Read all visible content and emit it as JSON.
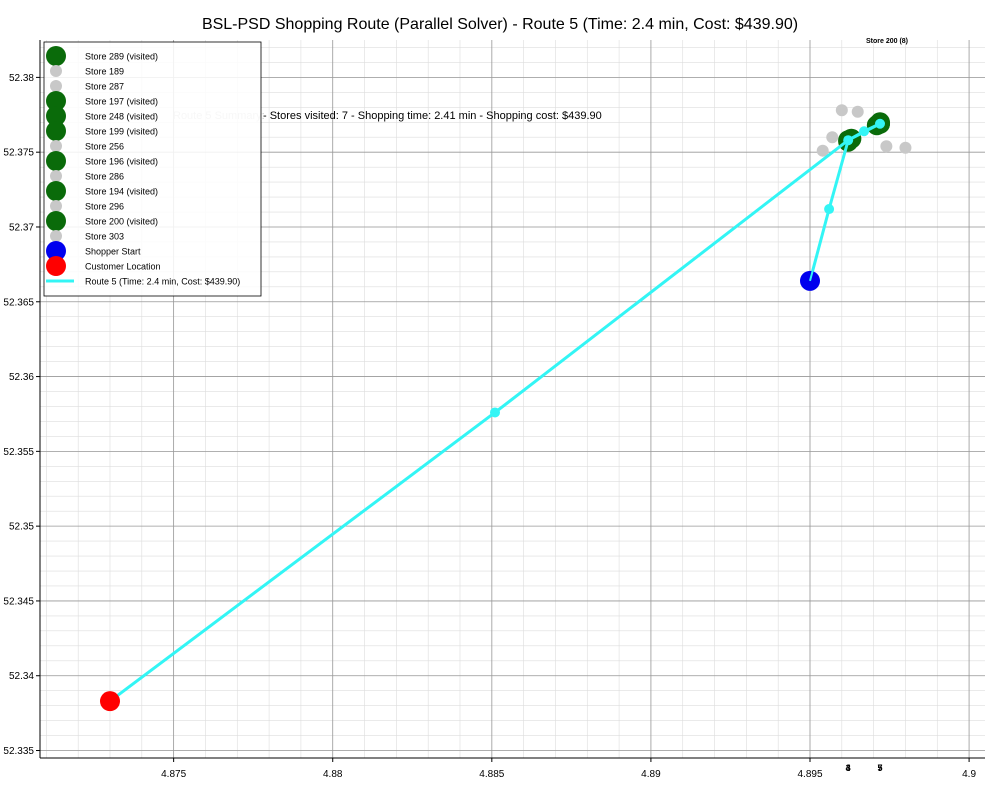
{
  "colors": {
    "visited": "#0a6b0a",
    "unvisited": "#c8c8c8",
    "shopper": "#0000ee",
    "customer": "#ff0000",
    "route": "#33f5f5",
    "grid_major": "#999999",
    "grid_minor": "#dddddd"
  },
  "chart_data": {
    "type": "scatter",
    "title": "BSL-PSD Shopping Route (Parallel Solver) - Route 5 (Time: 2.4 min, Cost: $439.90)",
    "xlabel": "",
    "ylabel": "",
    "xlim": [
      4.8708,
      4.9005
    ],
    "ylim": [
      52.3345,
      52.3825
    ],
    "x_ticks": [
      4.875,
      4.88,
      4.885,
      4.89,
      4.895,
      4.9
    ],
    "x_tick_labels": [
      "4.875",
      "4.88",
      "4.885",
      "4.89",
      "4.895",
      "4.9"
    ],
    "y_ticks": [
      52.335,
      52.34,
      52.345,
      52.35,
      52.355,
      52.36,
      52.365,
      52.37,
      52.375,
      52.38
    ],
    "y_tick_labels": [
      "52.335",
      "52.34",
      "52.345",
      "52.35",
      "52.355",
      "52.36",
      "52.365",
      "52.37",
      "52.375",
      "52.38"
    ],
    "grid": true,
    "minor_grid": true,
    "legend_position": "top-left",
    "annotation": "- Stores visited: 7 - Shopping time: 2.41 min - Shopping cost: $439.90",
    "annotation_hidden_prefix": "Route 5 Summary:",
    "top_label": "Store 200 (8)",
    "store_points": [
      {
        "name": "Store 289 (visited)",
        "visited": true,
        "x": 4.8962,
        "y": 52.3758
      },
      {
        "name": "Store 189",
        "visited": false,
        "x": 4.896,
        "y": 52.3778
      },
      {
        "name": "Store 287",
        "visited": false,
        "x": 4.8957,
        "y": 52.376
      },
      {
        "name": "Store 197 (visited)",
        "visited": true,
        "x": 4.8972,
        "y": 52.3769
      },
      {
        "name": "Store 248 (visited)",
        "visited": true,
        "x": 4.8963,
        "y": 52.3759
      },
      {
        "name": "Store 199 (visited)",
        "visited": true,
        "x": 4.8971,
        "y": 52.3768
      },
      {
        "name": "Store 256",
        "visited": false,
        "x": 4.8954,
        "y": 52.3751
      },
      {
        "name": "Store 196 (visited)",
        "visited": true,
        "x": 4.8962,
        "y": 52.3757
      },
      {
        "name": "Store 286",
        "visited": false,
        "x": 4.8965,
        "y": 52.3777
      },
      {
        "name": "Store 194 (visited)",
        "visited": true,
        "x": 4.8972,
        "y": 52.377
      },
      {
        "name": "Store 296",
        "visited": false,
        "x": 4.8974,
        "y": 52.3754
      },
      {
        "name": "Store 200 (visited)",
        "visited": true,
        "x": 4.8972,
        "y": 52.3769
      },
      {
        "name": "Store 303",
        "visited": false,
        "x": 4.898,
        "y": 52.3753
      }
    ],
    "shopper_start": {
      "name": "Shopper Start",
      "x": 4.895,
      "y": 52.3664
    },
    "customer_location": {
      "name": "Customer Location",
      "x": 4.873,
      "y": 52.3383
    },
    "route": {
      "name": "Route 5 (Time: 2.4 min, Cost: $439.90)",
      "x": [
        4.895,
        4.8956,
        4.8962,
        4.8962,
        4.8967,
        4.8972,
        4.8972,
        4.8962,
        4.8851,
        4.873
      ],
      "y": [
        52.3664,
        52.3712,
        52.3758,
        52.3758,
        52.3764,
        52.3769,
        52.3769,
        52.3758,
        52.3576,
        52.3383
      ]
    },
    "route_midpoints": [
      {
        "x": 4.8956,
        "y": 52.3712
      },
      {
        "x": 4.8967,
        "y": 52.3764
      },
      {
        "x": 4.8851,
        "y": 52.3576
      }
    ],
    "route_order_labels": [
      {
        "text": "3",
        "x": 4.8962
      },
      {
        "text": "4",
        "x": 4.8962
      },
      {
        "text": "5",
        "x": 4.8972
      },
      {
        "text": "7",
        "x": 4.8972
      }
    ]
  }
}
